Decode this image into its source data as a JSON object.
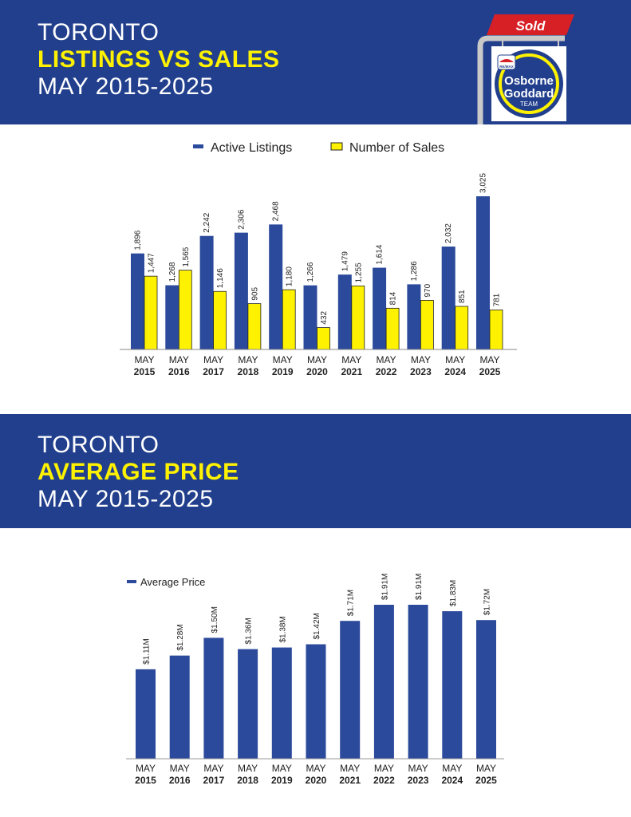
{
  "header": {
    "city": "TORONTO",
    "highlight": "LISTINGS VS SALES",
    "period": "MAY 2015-2025"
  },
  "logo": {
    "sold": "Sold",
    "brand": "RE/MAX",
    "name_line1": "Osborne",
    "name_line2": "Goddard",
    "name_line3": "TEAM"
  },
  "section2": {
    "city": "TORONTO",
    "highlight": "AVERAGE PRICE",
    "period": "MAY 2015-2025"
  },
  "colors": {
    "navy": "#213f8c",
    "bar_blue": "#2b4a9c",
    "bar_yellow": "#fff200",
    "highlight_yellow": "#fff200"
  },
  "chart_data": [
    {
      "type": "bar",
      "legend_position": "top",
      "categories_top": [
        "MAY",
        "MAY",
        "MAY",
        "MAY",
        "MAY",
        "MAY",
        "MAY",
        "MAY",
        "MAY",
        "MAY",
        "MAY"
      ],
      "categories": [
        "2015",
        "2016",
        "2017",
        "2018",
        "2019",
        "2020",
        "2021",
        "2022",
        "2023",
        "2024",
        "2025"
      ],
      "series": [
        {
          "name": "Active Listings",
          "values": [
            1896,
            1268,
            2242,
            2306,
            2468,
            1266,
            1479,
            1614,
            1286,
            2032,
            3025
          ],
          "labels": [
            "1,896",
            "1,268",
            "2,242",
            "2,306",
            "2,468",
            "1,266",
            "1,479",
            "1,614",
            "1,286",
            "2,032",
            "3,025"
          ]
        },
        {
          "name": "Number of Sales",
          "values": [
            1447,
            1565,
            1146,
            905,
            1180,
            432,
            1255,
            814,
            970,
            851,
            781
          ],
          "labels": [
            "1,447",
            "1,565",
            "1,146",
            "905",
            "1,180",
            "432",
            "1,255",
            "814",
            "970",
            "851",
            "781"
          ]
        }
      ],
      "ylim": [
        0,
        3025
      ],
      "grid": false
    },
    {
      "type": "bar",
      "legend_position": "top-left",
      "categories_top": [
        "MAY",
        "MAY",
        "MAY",
        "MAY",
        "MAY",
        "MAY",
        "MAY",
        "MAY",
        "MAY",
        "MAY",
        "MAY"
      ],
      "categories": [
        "2015",
        "2016",
        "2017",
        "2018",
        "2019",
        "2020",
        "2021",
        "2022",
        "2023",
        "2024",
        "2025"
      ],
      "series": [
        {
          "name": "Average Price",
          "values": [
            1.11,
            1.28,
            1.5,
            1.36,
            1.38,
            1.42,
            1.71,
            1.91,
            1.91,
            1.83,
            1.72
          ],
          "labels": [
            "$1.11M",
            "$1.28M",
            "$1.50M",
            "$1.36M",
            "$1.38M",
            "$1.42M",
            "$1.71M",
            "$1.91M",
            "$1.91M",
            "$1.83M",
            "$1.72M"
          ]
        }
      ],
      "ylim": [
        0,
        1.91
      ],
      "grid": false
    }
  ]
}
